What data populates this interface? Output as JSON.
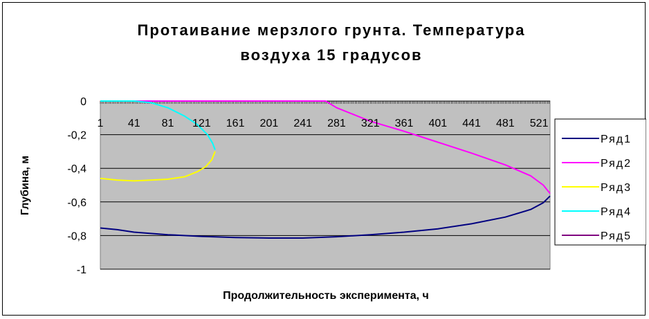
{
  "chart_data": {
    "type": "line",
    "title_line1": "Протаивание мерзлого грунта. Температура",
    "title_line2": "воздуха 15 градусов",
    "xlabel": "Продолжительность эксперимента, ч",
    "ylabel": "Глубина, м",
    "ylim": [
      -1,
      0
    ],
    "xlim": [
      1,
      534
    ],
    "x_tick_labels": [
      "1",
      "41",
      "81",
      "121",
      "161",
      "201",
      "241",
      "281",
      "321",
      "361",
      "401",
      "441",
      "481",
      "521"
    ],
    "y_tick_labels": [
      "0",
      "-0,2",
      "-0,4",
      "-0,6",
      "-0,8",
      "-1"
    ],
    "grid": true,
    "plot_background": "#c0c0c0",
    "legend_position": "right",
    "series": [
      {
        "name": "Ряд1",
        "color": "#000080",
        "points": [
          [
            1,
            -0.755
          ],
          [
            21,
            -0.765
          ],
          [
            41,
            -0.78
          ],
          [
            81,
            -0.795
          ],
          [
            121,
            -0.805
          ],
          [
            161,
            -0.812
          ],
          [
            201,
            -0.815
          ],
          [
            241,
            -0.815
          ],
          [
            281,
            -0.807
          ],
          [
            321,
            -0.795
          ],
          [
            361,
            -0.78
          ],
          [
            401,
            -0.76
          ],
          [
            441,
            -0.73
          ],
          [
            481,
            -0.69
          ],
          [
            511,
            -0.645
          ],
          [
            526,
            -0.605
          ],
          [
            534,
            -0.565
          ]
        ]
      },
      {
        "name": "Ряд2",
        "color": "#ff00ff",
        "points": [
          [
            1,
            0
          ],
          [
            268,
            0
          ],
          [
            281,
            -0.04
          ],
          [
            301,
            -0.08
          ],
          [
            321,
            -0.12
          ],
          [
            361,
            -0.18
          ],
          [
            401,
            -0.245
          ],
          [
            441,
            -0.31
          ],
          [
            481,
            -0.38
          ],
          [
            511,
            -0.445
          ],
          [
            526,
            -0.5
          ],
          [
            534,
            -0.55
          ]
        ]
      },
      {
        "name": "Ряд3",
        "color": "#ffff00",
        "points": [
          [
            1,
            -0.46
          ],
          [
            21,
            -0.47
          ],
          [
            41,
            -0.475
          ],
          [
            61,
            -0.47
          ],
          [
            81,
            -0.465
          ],
          [
            101,
            -0.45
          ],
          [
            116,
            -0.42
          ],
          [
            126,
            -0.39
          ],
          [
            133,
            -0.35
          ],
          [
            137,
            -0.3
          ]
        ]
      },
      {
        "name": "Ряд4",
        "color": "#00ffff",
        "points": [
          [
            1,
            0
          ],
          [
            41,
            0
          ],
          [
            61,
            -0.01
          ],
          [
            81,
            -0.04
          ],
          [
            101,
            -0.09
          ],
          [
            116,
            -0.14
          ],
          [
            128,
            -0.2
          ],
          [
            134,
            -0.25
          ],
          [
            137,
            -0.29
          ]
        ]
      },
      {
        "name": "Ряд5",
        "color": "#800080",
        "points": []
      }
    ]
  }
}
